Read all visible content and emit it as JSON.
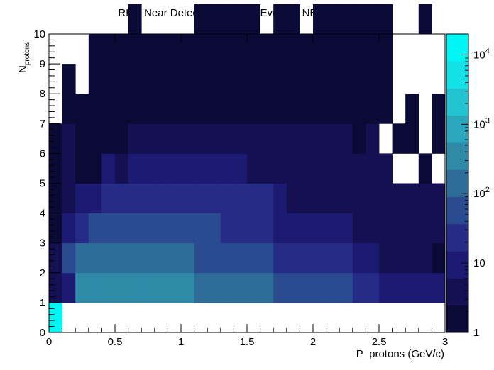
{
  "chart_data": {
    "type": "heatmap",
    "title": "RHC Near Detector Numubar Events - NEUT CCOther",
    "xlabel": "P_protons (GeV/c)",
    "ylabel_main": "N",
    "ylabel_sub": "protons",
    "xlim": [
      0,
      3
    ],
    "ylim": [
      0,
      10
    ],
    "x_ticks": [
      "0",
      "0.5",
      "1",
      "1.5",
      "2",
      "2.5",
      "3"
    ],
    "y_ticks": [
      "0",
      "1",
      "2",
      "3",
      "4",
      "5",
      "6",
      "7",
      "8",
      "9",
      "10"
    ],
    "x_bin_width": 0.1,
    "log_z": true,
    "zlim": [
      1,
      20000
    ],
    "z_ticks": [
      {
        "base": "1",
        "exp": ""
      },
      {
        "base": "10",
        "exp": ""
      },
      {
        "base": "10",
        "exp": "2"
      },
      {
        "base": "10",
        "exp": "3"
      },
      {
        "base": "10",
        "exp": "4"
      }
    ],
    "palette": [
      "#0b0a36",
      "#141052",
      "#1d1a74",
      "#262b86",
      "#2a4b8f",
      "#2e6c99",
      "#2f8aa8",
      "#2aa7bc",
      "#23c4d2",
      "#12e1e8",
      "#00f5f5"
    ],
    "rows": [
      [
        18000,
        0,
        0,
        0,
        0,
        0,
        0,
        0,
        0,
        0,
        0,
        0,
        0,
        0,
        0,
        0,
        0,
        0,
        0,
        0,
        0,
        0,
        0,
        0,
        0,
        0,
        0,
        0,
        0,
        0
      ],
      [
        3,
        14,
        450,
        450,
        450,
        450,
        450,
        450,
        450,
        450,
        450,
        200,
        200,
        110,
        110,
        110,
        110,
        70,
        50,
        50,
        50,
        50,
        50,
        30,
        30,
        14,
        14,
        8,
        10,
        8
      ],
      [
        3,
        60,
        150,
        150,
        150,
        150,
        150,
        150,
        150,
        150,
        150,
        60,
        60,
        40,
        40,
        40,
        40,
        15,
        15,
        15,
        15,
        15,
        15,
        8,
        8,
        6,
        6,
        5,
        4,
        2
      ],
      [
        2,
        8,
        25,
        40,
        60,
        60,
        90,
        90,
        50,
        50,
        50,
        50,
        50,
        30,
        25,
        25,
        25,
        12,
        8,
        8,
        8,
        8,
        8,
        4,
        5,
        3,
        4,
        4,
        4,
        3
      ],
      [
        1,
        6,
        10,
        10,
        25,
        25,
        30,
        30,
        30,
        30,
        30,
        20,
        30,
        20,
        20,
        20,
        20,
        10,
        6,
        6,
        6,
        6,
        6,
        4,
        4,
        3,
        4,
        3,
        3,
        3
      ],
      [
        1,
        4,
        2,
        2,
        8,
        4,
        12,
        12,
        12,
        12,
        12,
        12,
        12,
        12,
        12,
        6,
        6,
        6,
        6,
        6,
        6,
        6,
        6,
        3,
        3,
        3,
        0,
        0,
        2,
        0
      ],
      [
        1,
        3,
        1,
        1,
        2,
        2,
        3,
        3,
        4,
        3,
        4,
        4,
        4,
        4,
        4,
        3,
        3,
        3,
        3,
        3,
        3,
        3,
        3,
        1,
        3,
        0,
        1,
        1,
        0,
        1
      ],
      [
        0,
        2,
        1,
        1,
        1,
        1,
        2,
        2,
        2,
        2,
        2,
        2,
        2,
        2,
        2,
        2,
        2,
        2,
        2,
        2,
        2,
        2,
        2,
        2,
        2,
        2,
        0,
        1,
        0,
        1
      ],
      [
        0,
        1,
        0,
        1,
        1,
        1,
        1,
        1,
        1,
        1,
        1,
        1,
        1,
        1,
        1,
        1,
        1,
        1,
        1,
        1,
        1,
        1,
        1,
        1,
        1,
        1,
        0,
        0,
        0,
        0
      ],
      [
        0,
        0,
        0,
        1,
        1,
        1,
        1,
        1,
        1,
        2,
        1,
        1,
        1,
        1,
        1,
        1,
        1,
        1,
        1,
        1,
        1,
        1,
        1,
        1,
        1,
        1,
        0,
        0,
        0,
        0
      ],
      [
        0,
        0,
        0,
        0,
        0,
        0,
        1,
        0,
        0,
        0,
        0,
        1,
        1,
        1,
        1,
        1,
        0,
        1,
        1,
        0,
        1,
        1,
        1,
        1,
        1,
        1,
        0,
        0,
        1,
        0
      ]
    ]
  }
}
